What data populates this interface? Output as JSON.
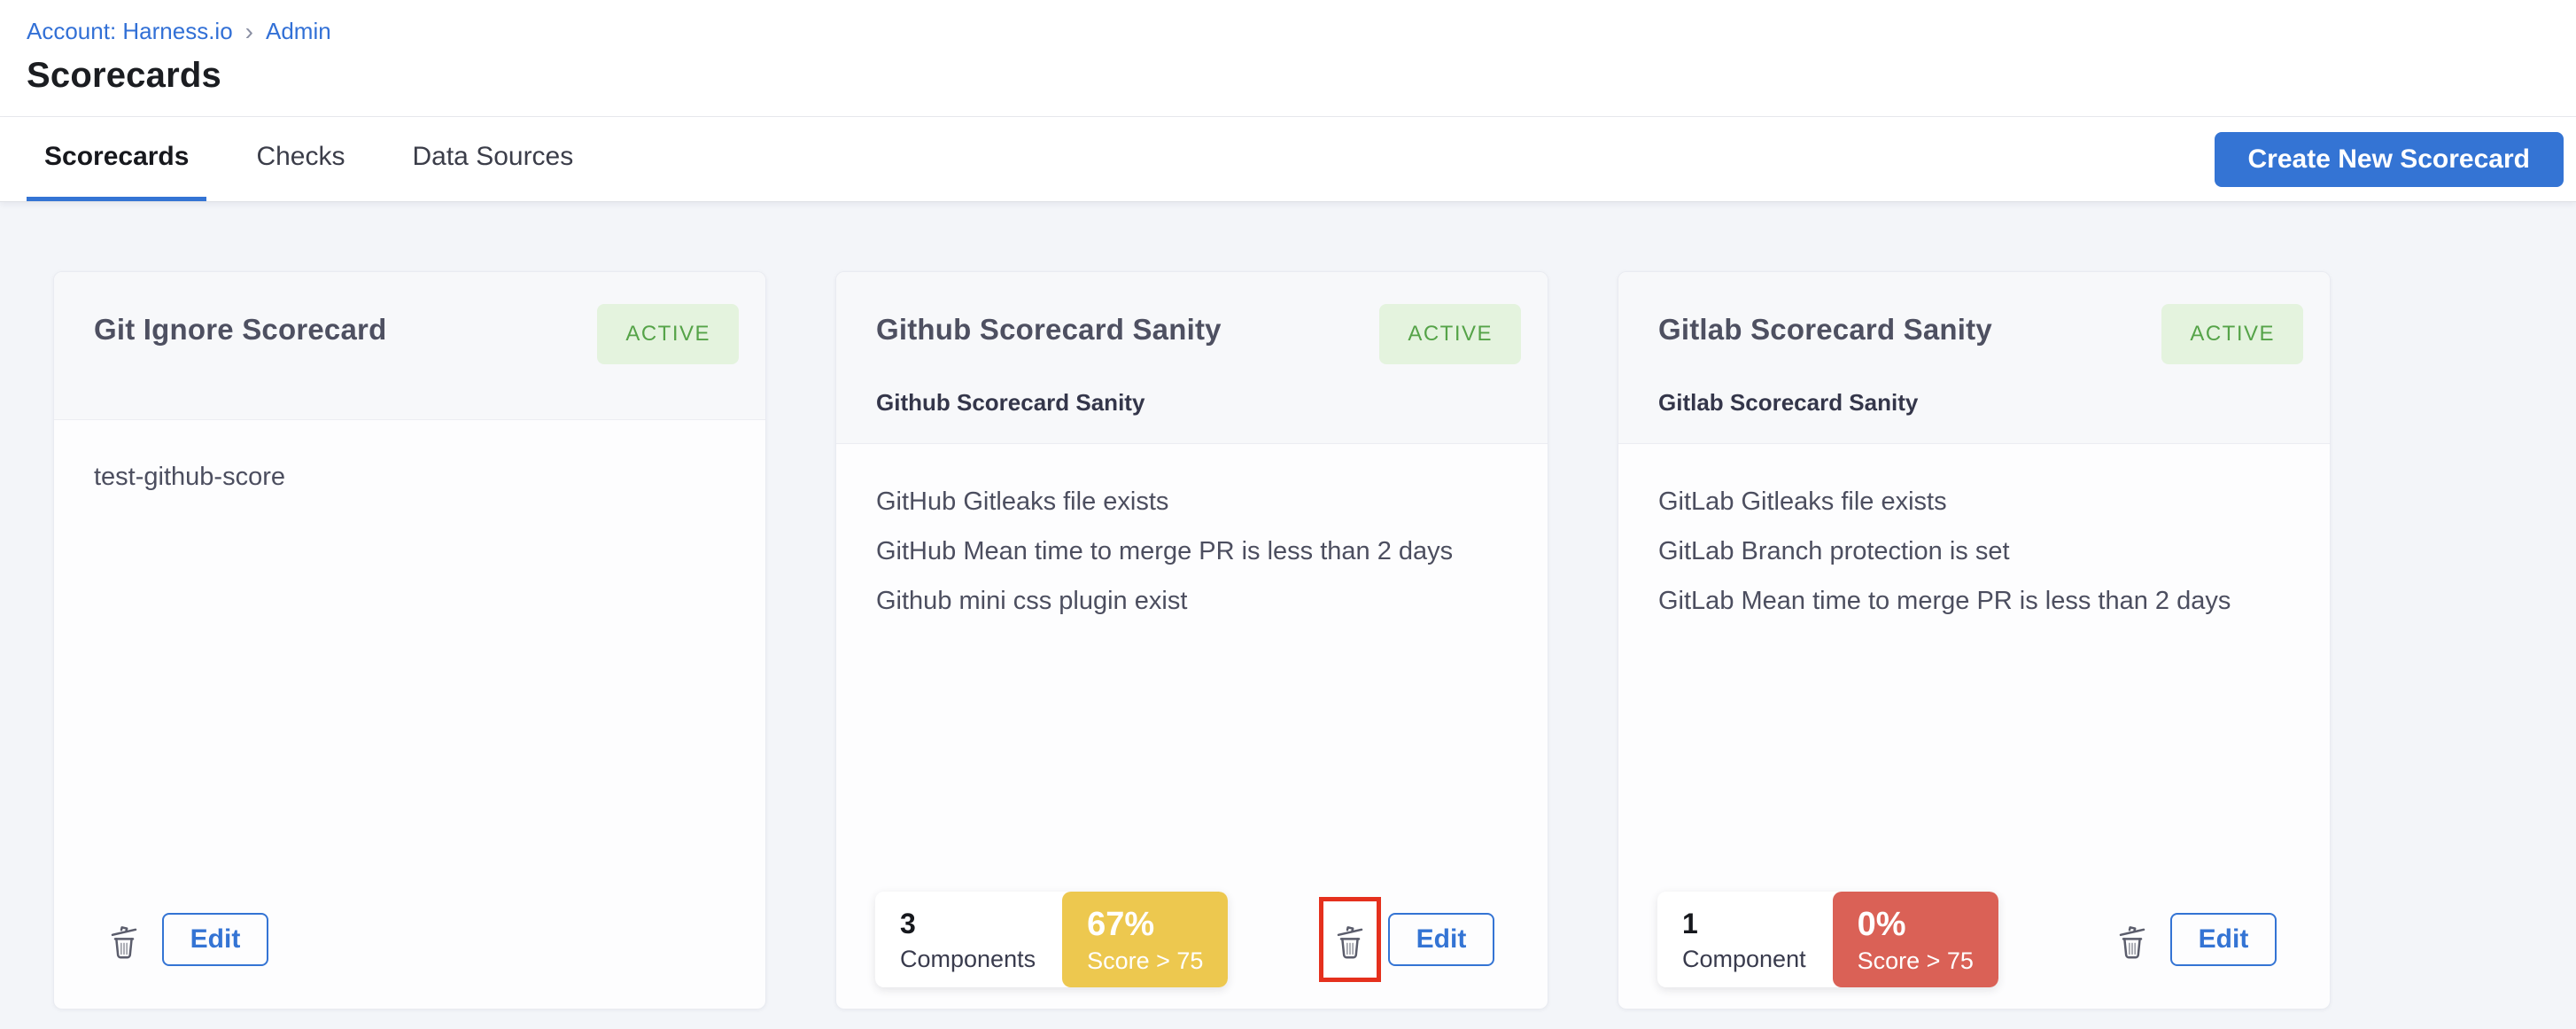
{
  "breadcrumb": {
    "account_label": "Account: Harness.io",
    "separator": "›",
    "admin_label": "Admin"
  },
  "page": {
    "title": "Scorecards"
  },
  "tabs": [
    {
      "label": "Scorecards",
      "active": true
    },
    {
      "label": "Checks",
      "active": false
    },
    {
      "label": "Data Sources",
      "active": false
    }
  ],
  "toolbar": {
    "create_button_label": "Create New Scorecard"
  },
  "colors": {
    "primary_blue": "#3474d4",
    "active_badge_bg": "#e4f3de",
    "active_badge_text": "#55a348",
    "score_yellow": "#edc84f",
    "score_red": "#da6156",
    "annotation_red": "#e5301d"
  },
  "cards": [
    {
      "title": "Git Ignore Scorecard",
      "status": "ACTIVE",
      "subtitle": "",
      "description": "test-github-score",
      "checks": [],
      "stats": null,
      "delete_icon": "trash-icon",
      "delete_highlighted": false,
      "edit_label": "Edit"
    },
    {
      "title": "Github Scorecard Sanity",
      "status": "ACTIVE",
      "subtitle": "Github Scorecard Sanity",
      "description": "",
      "checks": [
        "GitHub Gitleaks file exists",
        "GitHub Mean time to merge PR is less than 2 days",
        "Github mini css plugin exist"
      ],
      "stats": {
        "count": "3",
        "count_label": "Components",
        "percent": "67%",
        "percent_label": "Score > 75",
        "percent_color": "#edc84f"
      },
      "delete_icon": "trash-icon",
      "delete_highlighted": true,
      "edit_label": "Edit"
    },
    {
      "title": "Gitlab Scorecard Sanity",
      "status": "ACTIVE",
      "subtitle": "Gitlab Scorecard Sanity",
      "description": "",
      "checks": [
        "GitLab Gitleaks file exists",
        "GitLab Branch protection is set",
        "GitLab Mean time to merge PR is less than 2 days"
      ],
      "stats": {
        "count": "1",
        "count_label": "Component",
        "percent": "0%",
        "percent_label": "Score > 75",
        "percent_color": "#da6156"
      },
      "delete_icon": "trash-icon",
      "delete_highlighted": false,
      "edit_label": "Edit"
    }
  ]
}
